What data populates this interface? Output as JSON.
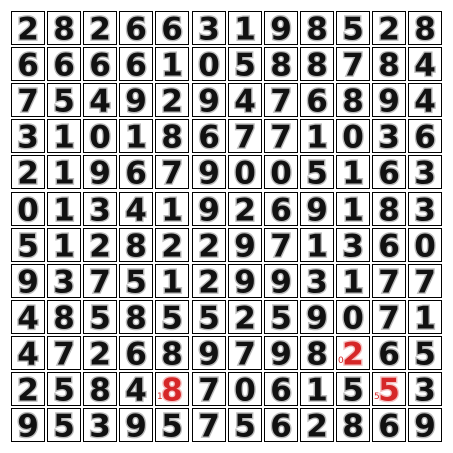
{
  "grid": {
    "rows": 12,
    "cols": 12,
    "digits": [
      [
        "2",
        "8",
        "2",
        "6",
        "6",
        "3",
        "1",
        "9",
        "8",
        "5",
        "2",
        "8"
      ],
      [
        "6",
        "6",
        "6",
        "6",
        "1",
        "0",
        "5",
        "8",
        "8",
        "7",
        "8",
        "4"
      ],
      [
        "7",
        "5",
        "4",
        "9",
        "2",
        "9",
        "4",
        "7",
        "6",
        "8",
        "9",
        "4"
      ],
      [
        "3",
        "1",
        "0",
        "1",
        "8",
        "6",
        "7",
        "7",
        "1",
        "0",
        "3",
        "6"
      ],
      [
        "2",
        "1",
        "9",
        "6",
        "7",
        "9",
        "0",
        "0",
        "5",
        "1",
        "6",
        "3"
      ],
      [
        "0",
        "1",
        "3",
        "4",
        "1",
        "9",
        "2",
        "6",
        "9",
        "1",
        "8",
        "3"
      ],
      [
        "5",
        "1",
        "2",
        "8",
        "2",
        "2",
        "9",
        "7",
        "1",
        "3",
        "6",
        "0"
      ],
      [
        "9",
        "3",
        "7",
        "5",
        "1",
        "2",
        "9",
        "9",
        "3",
        "1",
        "7",
        "7"
      ],
      [
        "4",
        "8",
        "5",
        "8",
        "5",
        "5",
        "2",
        "5",
        "9",
        "0",
        "7",
        "1"
      ],
      [
        "4",
        "7",
        "2",
        "6",
        "8",
        "9",
        "7",
        "9",
        "8",
        "2",
        "6",
        "5"
      ],
      [
        "2",
        "5",
        "8",
        "4",
        "8",
        "7",
        "0",
        "6",
        "1",
        "5",
        "5",
        "3"
      ],
      [
        "9",
        "5",
        "3",
        "9",
        "5",
        "7",
        "5",
        "6",
        "2",
        "8",
        "6",
        "9"
      ]
    ]
  },
  "highlights": [
    {
      "row": 9,
      "col": 9,
      "label": "0"
    },
    {
      "row": 10,
      "col": 4,
      "label": "1"
    },
    {
      "row": 10,
      "col": 10,
      "label": "5"
    }
  ],
  "colors": {
    "ink": "#111111",
    "highlight": "#d62728",
    "border": "#000000",
    "background": "#ffffff"
  }
}
